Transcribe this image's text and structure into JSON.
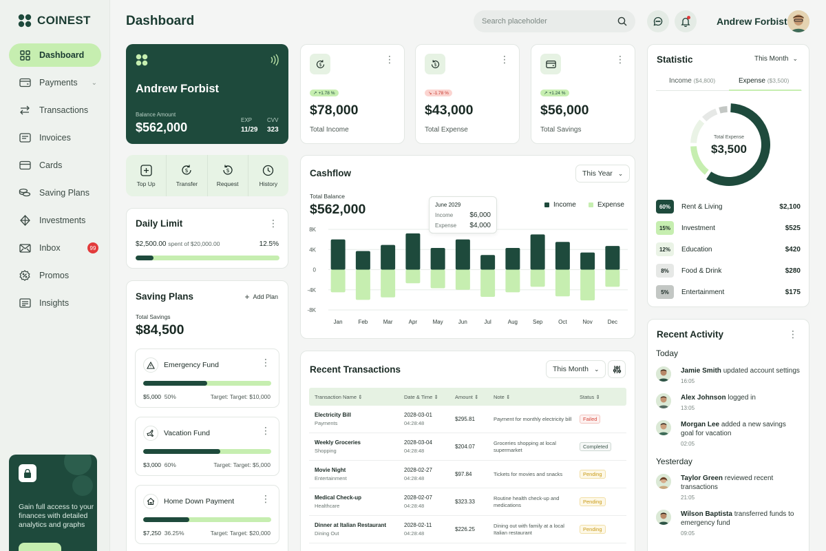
{
  "brand": {
    "name": "COINEST"
  },
  "sidebar": {
    "items": [
      {
        "label": "Dashboard",
        "icon": "grid-icon",
        "active": true
      },
      {
        "label": "Payments",
        "icon": "wallet-icon",
        "chevron": true
      },
      {
        "label": "Transactions",
        "icon": "arrows-icon"
      },
      {
        "label": "Invoices",
        "icon": "invoice-icon"
      },
      {
        "label": "Cards",
        "icon": "card-icon"
      },
      {
        "label": "Saving Plans",
        "icon": "coins-icon"
      },
      {
        "label": "Investments",
        "icon": "diamond-icon"
      },
      {
        "label": "Inbox",
        "icon": "mail-icon",
        "badge": "99"
      },
      {
        "label": "Promos",
        "icon": "percent-icon"
      },
      {
        "label": "Insights",
        "icon": "insights-icon"
      }
    ],
    "promo": {
      "text": "Gain full access to your finances with detailed analytics and graphs"
    }
  },
  "header": {
    "title": "Dashboard",
    "search_placeholder": "Search placeholder",
    "user_name": "Andrew Forbist"
  },
  "bank_card": {
    "name": "Andrew Forbist",
    "balance_label": "Balance Amount",
    "balance": "$562,000",
    "exp_label": "EXP",
    "exp": "11/29",
    "cvv_label": "CVV",
    "cvv": "323"
  },
  "quick_actions": [
    {
      "label": "Top Up",
      "icon": "plus-square-icon"
    },
    {
      "label": "Transfer",
      "icon": "dollar-cycle-icon"
    },
    {
      "label": "Request",
      "icon": "dollar-refresh-icon"
    },
    {
      "label": "History",
      "icon": "clock-icon"
    }
  ],
  "daily_limit": {
    "title": "Daily Limit",
    "spent": "$2,500.00",
    "spent_of": "spent of $20,000.00",
    "percent_label": "12.5%",
    "fraction": 0.125
  },
  "saving_plans": {
    "title": "Saving Plans",
    "add_label": "Add Plan",
    "total_label": "Total Savings",
    "total": "$84,500",
    "plans": [
      {
        "name": "Emergency Fund",
        "icon": "warning-icon",
        "amount": "$5,000",
        "pct": "50%",
        "target_prefix": "Target:",
        "target": "Target: $10,000",
        "fraction": 0.5
      },
      {
        "name": "Vacation Fund",
        "icon": "plane-icon",
        "amount": "$3,000",
        "pct": "60%",
        "target_prefix": "Target:",
        "target": "Target: $5,000",
        "fraction": 0.6
      },
      {
        "name": "Home Down Payment",
        "icon": "home-icon",
        "amount": "$7,250",
        "pct": "36.25%",
        "target_prefix": "Target:",
        "target": "Target: $20,000",
        "fraction": 0.3625
      }
    ]
  },
  "kpis": [
    {
      "label": "Total Income",
      "value": "$78,000",
      "change": "+1.78 %",
      "trend": "up",
      "icon": "dollar-cycle-icon"
    },
    {
      "label": "Total Expense",
      "value": "$43,000",
      "change": "-1.78 %",
      "trend": "down",
      "icon": "dollar-refresh-icon"
    },
    {
      "label": "Total Savings",
      "value": "$56,000",
      "change": "+1.24 %",
      "trend": "up",
      "icon": "wallet-icon"
    }
  ],
  "cashflow": {
    "title": "Cashflow",
    "period": "This Year",
    "balance_label": "Total Balance",
    "balance": "$562,000",
    "tooltip": {
      "month": "June 2029",
      "income_label": "Income",
      "income": "$6,000",
      "expense_label": "Expense",
      "expense": "$4,000"
    },
    "legend": [
      {
        "name": "Income",
        "color": "#1e4a3c"
      },
      {
        "name": "Expense",
        "color": "#c6eeb0"
      }
    ]
  },
  "chart_data": {
    "type": "bar",
    "categories": [
      "Jan",
      "Feb",
      "Mar",
      "Apr",
      "May",
      "Jun",
      "Jul",
      "Aug",
      "Sep",
      "Oct",
      "Nov",
      "Dec"
    ],
    "series": [
      {
        "name": "Income",
        "values": [
          6000,
          3700,
          4900,
          7200,
          4300,
          6000,
          2900,
          4300,
          7000,
          5500,
          3400,
          4700
        ]
      },
      {
        "name": "Expense",
        "values": [
          -4500,
          -6000,
          -5500,
          -2700,
          -3700,
          -4000,
          -5400,
          -4500,
          -3400,
          -5300,
          -6100,
          -3400
        ]
      }
    ],
    "ytick_labels": [
      "8K",
      "4K",
      "0",
      "-4K",
      "-8K"
    ],
    "ylim": [
      -8000,
      8000
    ],
    "grid": true,
    "legend": "top-right"
  },
  "transactions": {
    "title": "Recent Transactions",
    "period": "This Month",
    "columns": [
      "Transaction Name",
      "Date & Time",
      "Amount",
      "Note",
      "Status"
    ],
    "rows": [
      {
        "name": "Electricity Bill",
        "category": "Payments",
        "date": "2028-03-01",
        "time": "04:28:48",
        "amount": "$295.81",
        "note": "Payment for monthly electricity bill",
        "status": "Failed",
        "status_type": "failed"
      },
      {
        "name": "Weekly Groceries",
        "category": "Shopping",
        "date": "2028-03-04",
        "time": "04:28:48",
        "amount": "$204.07",
        "note": "Groceries shopping at local supermarket",
        "status": "Completed",
        "status_type": "completed"
      },
      {
        "name": "Movie Night",
        "category": "Entertainment",
        "date": "2028-02-27",
        "time": "04:28:48",
        "amount": "$97.84",
        "note": "Tickets for movies and snacks",
        "status": "Pending",
        "status_type": "pending"
      },
      {
        "name": "Medical Check-up",
        "category": "Healthcare",
        "date": "2028-02-07",
        "time": "04:28:48",
        "amount": "$323.33",
        "note": "Routine health check-up and medications",
        "status": "Pending",
        "status_type": "pending"
      },
      {
        "name": "Dinner at Italian Restaurant",
        "category": "Dining Out",
        "date": "2028-02-11",
        "time": "04:28:48",
        "amount": "$226.25",
        "note": "Dining out with family at a local Italian restaurant",
        "status": "Pending",
        "status_type": "pending"
      }
    ]
  },
  "statistic": {
    "title": "Statistic",
    "period": "This Month",
    "tabs": [
      {
        "label": "Income",
        "count": "($4,800)"
      },
      {
        "label": "Expense",
        "count": "($3,500)",
        "active": true
      }
    ],
    "donut_label": "Total Expense",
    "donut_value": "$3,500",
    "categories": [
      {
        "pct": "60%",
        "name": "Rent & Living",
        "amount": "$2,100",
        "fraction": 0.6,
        "color": "#1e4a3c",
        "text": "#ffffff"
      },
      {
        "pct": "15%",
        "name": "Investment",
        "amount": "$525",
        "fraction": 0.15,
        "color": "#c6eeb0",
        "text": "#1a2a24"
      },
      {
        "pct": "12%",
        "name": "Education",
        "amount": "$420",
        "fraction": 0.12,
        "color": "#eaf3e6",
        "text": "#1a2a24"
      },
      {
        "pct": "8%",
        "name": "Food & Drink",
        "amount": "$280",
        "fraction": 0.08,
        "color": "#e6e8e6",
        "text": "#1a2a24"
      },
      {
        "pct": "5%",
        "name": "Entertainment",
        "amount": "$175",
        "fraction": 0.05,
        "color": "#c3c7c4",
        "text": "#1a2a24"
      }
    ]
  },
  "activity": {
    "title": "Recent Activity",
    "today_label": "Today",
    "yesterday_label": "Yesterday",
    "today": [
      {
        "user": "Jamie Smith",
        "action": "updated account settings",
        "time": "16:05"
      },
      {
        "user": "Alex Johnson",
        "action": "logged in",
        "time": "13:05"
      },
      {
        "user": "Morgan Lee",
        "action": "added a new savings goal for vacation",
        "time": "02:05"
      }
    ],
    "yesterday": [
      {
        "user": "Taylor Green",
        "action": "reviewed recent transactions",
        "time": "21:05"
      },
      {
        "user": "Wilson Baptista",
        "action": "transferred funds to emergency fund",
        "time": "09:05"
      }
    ]
  }
}
